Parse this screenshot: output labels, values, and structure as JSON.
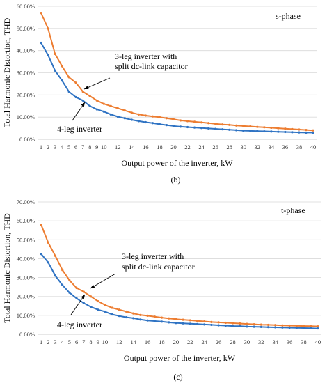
{
  "colors": {
    "blue": "#2f73c3",
    "orange": "#ed7d31",
    "grid": "#d9d9d9"
  },
  "chart_data": [
    {
      "type": "line",
      "phase_label": "s-phase",
      "caption": "(b)",
      "xlabel": "Output power of the inverter, kW",
      "ylabel": "Total Harmonic Distortion, THD",
      "ylim": [
        0,
        60
      ],
      "yticks": [
        "0.00%",
        "10.00%",
        "20.00%",
        "30.00%",
        "40.00%",
        "50.00%",
        "60.00%"
      ],
      "xtick_labels": [
        "1",
        "2",
        "3",
        "4",
        "5",
        "6",
        "7",
        "8",
        "9",
        "10",
        "12",
        "14",
        "16",
        "18",
        "20",
        "22",
        "24",
        "26",
        "28",
        "30",
        "32",
        "34",
        "36",
        "38",
        "40"
      ],
      "x": [
        1,
        2,
        3,
        4,
        5,
        6,
        7,
        8,
        9,
        10,
        11,
        12,
        13,
        14,
        15,
        16,
        17,
        18,
        19,
        20,
        21,
        22,
        23,
        24,
        25,
        26,
        27,
        28,
        29,
        30,
        31,
        32,
        33,
        34,
        35,
        36,
        37,
        38,
        39,
        40
      ],
      "series": [
        {
          "name": "3-leg inverter with split dc-link capacitor",
          "color": "#ed7d31",
          "values": [
            57.0,
            50.0,
            38.5,
            33.0,
            28.0,
            25.5,
            21.5,
            19.5,
            17.5,
            16.0,
            15.0,
            14.0,
            13.0,
            12.0,
            11.2,
            10.7,
            10.3,
            10.0,
            9.5,
            9.0,
            8.5,
            8.2,
            7.9,
            7.6,
            7.3,
            7.0,
            6.7,
            6.5,
            6.2,
            6.0,
            5.8,
            5.6,
            5.4,
            5.2,
            5.0,
            4.8,
            4.6,
            4.4,
            4.2,
            4.0
          ]
        },
        {
          "name": "4-leg inverter",
          "color": "#2f73c3",
          "values": [
            43.5,
            38.0,
            31.0,
            26.5,
            21.5,
            19.0,
            17.5,
            15.0,
            13.5,
            12.5,
            11.2,
            10.2,
            9.5,
            8.8,
            8.2,
            7.7,
            7.3,
            6.8,
            6.4,
            6.0,
            5.7,
            5.5,
            5.3,
            5.1,
            4.9,
            4.7,
            4.5,
            4.3,
            4.1,
            3.9,
            3.8,
            3.7,
            3.6,
            3.5,
            3.4,
            3.3,
            3.2,
            3.1,
            3.0,
            3.0
          ]
        }
      ],
      "annotations": [
        {
          "lines": [
            "3-leg inverter with",
            "split dc-link capacitor"
          ]
        },
        {
          "lines": [
            "4-leg inverter"
          ]
        }
      ]
    },
    {
      "type": "line",
      "phase_label": "t-phase",
      "caption": "(c)",
      "xlabel": "Output power of the inverter, kW",
      "ylabel": "Total Harmonic Distortion, THD",
      "ylim": [
        0,
        70
      ],
      "yticks": [
        "0.00%",
        "10.00%",
        "20.00%",
        "30.00%",
        "40.00%",
        "50.00%",
        "60.00%",
        "70.00%"
      ],
      "xtick_labels": [
        "1",
        "2",
        "3",
        "4",
        "5",
        "6",
        "7",
        "8",
        "9",
        "10",
        "12",
        "14",
        "16",
        "18",
        "20",
        "22",
        "24",
        "26",
        "28",
        "30",
        "32",
        "34",
        "36",
        "38",
        "40"
      ],
      "x": [
        1,
        2,
        3,
        4,
        5,
        6,
        7,
        8,
        9,
        10,
        11,
        12,
        13,
        14,
        15,
        16,
        17,
        18,
        19,
        20,
        21,
        22,
        23,
        24,
        25,
        26,
        27,
        28,
        29,
        30,
        31,
        32,
        33,
        34,
        35,
        36,
        37,
        38,
        39,
        40
      ],
      "series": [
        {
          "name": "3-leg inverter with split dc-link capacitor",
          "color": "#ed7d31",
          "values": [
            58.0,
            48.5,
            41.5,
            34.0,
            28.5,
            24.5,
            22.5,
            20.0,
            17.5,
            15.5,
            14.0,
            13.0,
            12.0,
            11.0,
            10.2,
            9.8,
            9.3,
            8.8,
            8.4,
            8.0,
            7.7,
            7.4,
            7.1,
            6.8,
            6.5,
            6.3,
            6.1,
            5.9,
            5.7,
            5.5,
            5.3,
            5.1,
            5.0,
            4.9,
            4.7,
            4.6,
            4.5,
            4.4,
            4.3,
            4.2
          ]
        },
        {
          "name": "4-leg inverter",
          "color": "#2f73c3",
          "values": [
            42.5,
            38.0,
            31.0,
            26.0,
            22.0,
            19.0,
            16.5,
            14.5,
            13.0,
            12.0,
            10.5,
            9.7,
            9.0,
            8.5,
            7.8,
            7.3,
            7.0,
            6.7,
            6.3,
            6.0,
            5.8,
            5.6,
            5.4,
            5.2,
            5.0,
            4.8,
            4.6,
            4.4,
            4.3,
            4.1,
            4.0,
            3.9,
            3.8,
            3.7,
            3.6,
            3.5,
            3.4,
            3.3,
            3.2,
            3.1
          ]
        }
      ],
      "annotations": [
        {
          "lines": [
            "3-leg inverter with",
            "split dc-link capacitor"
          ]
        },
        {
          "lines": [
            "4-leg inverter"
          ]
        }
      ]
    }
  ]
}
